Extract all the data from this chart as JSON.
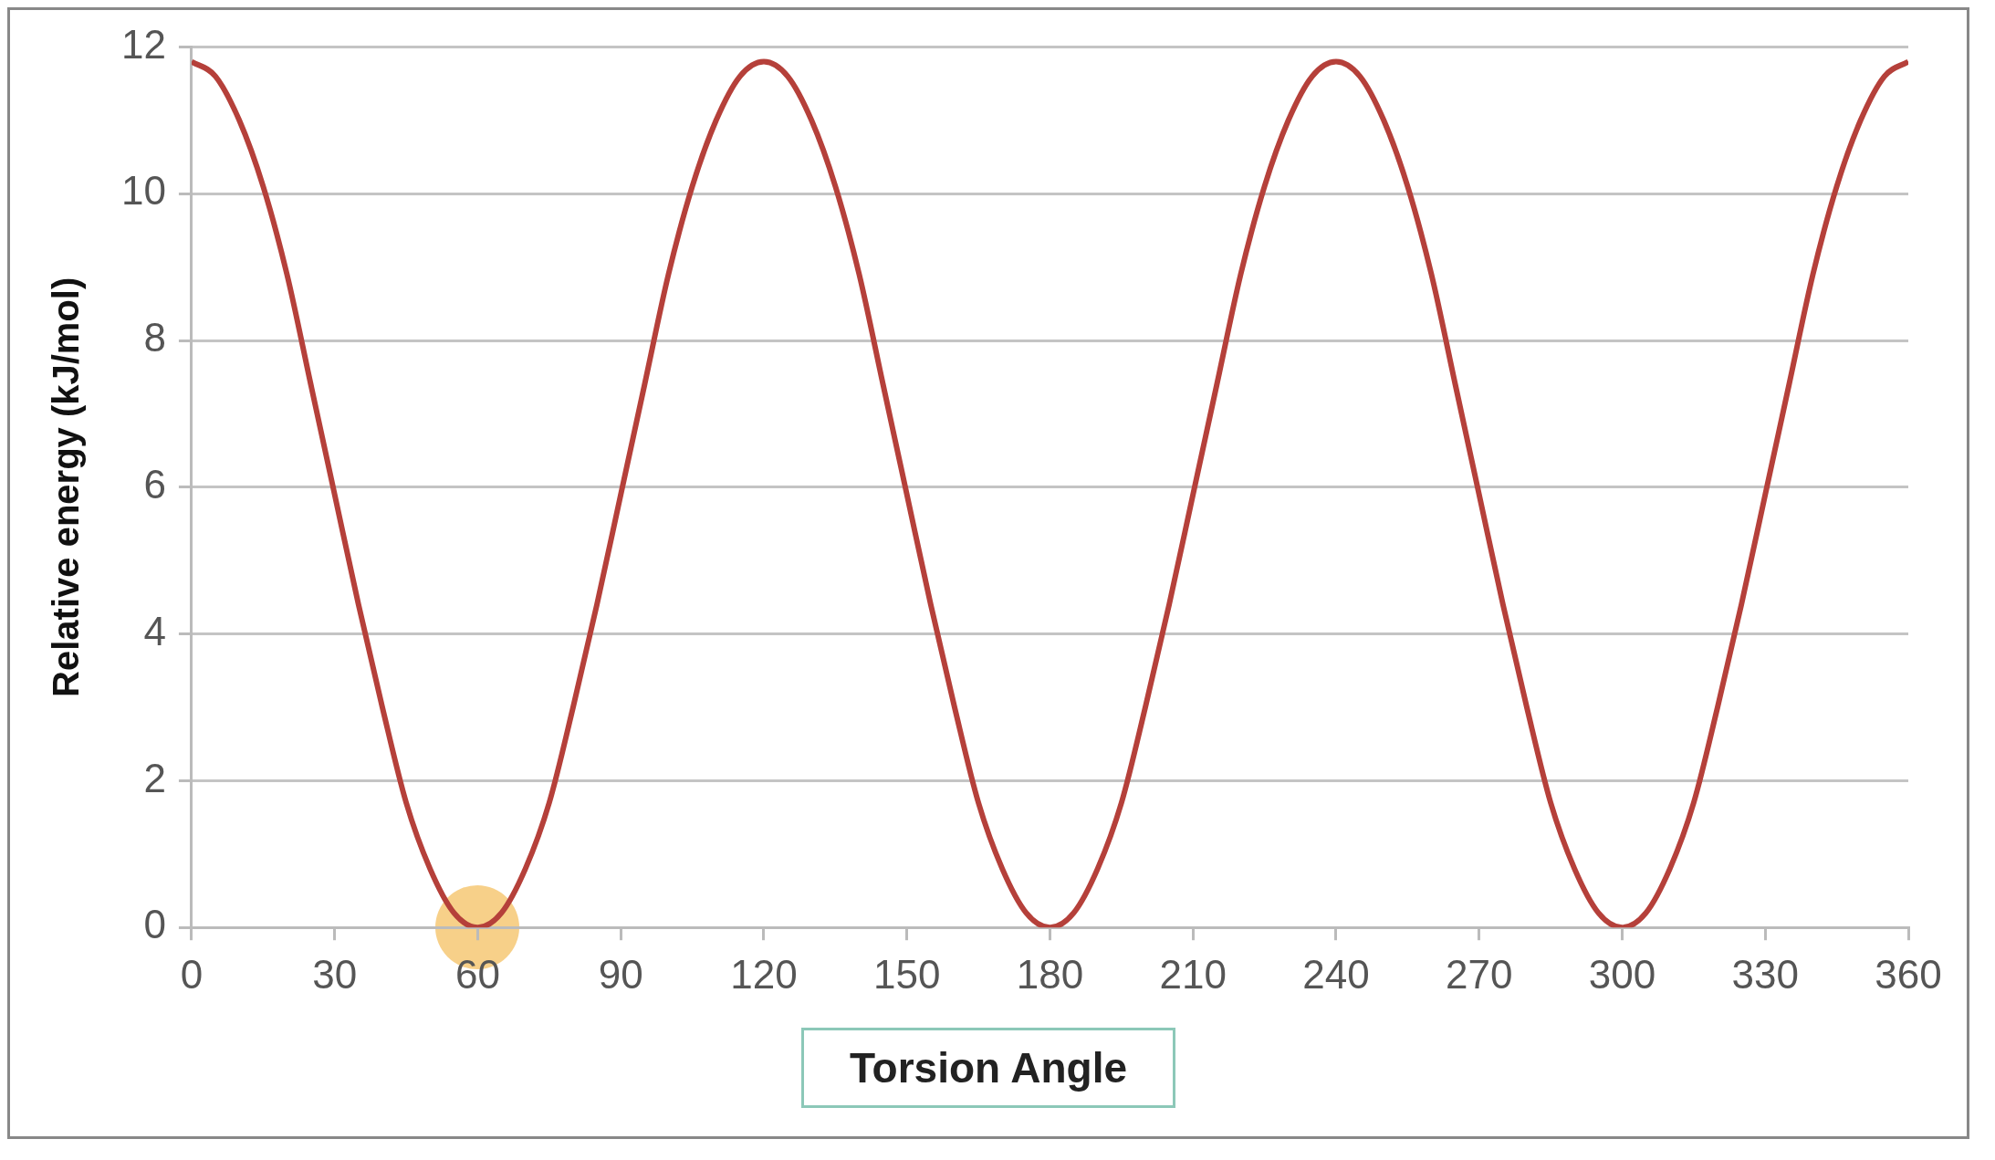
{
  "chart_data": {
    "type": "line",
    "xlabel": "Torsion Angle",
    "ylabel": "Relative energy (kJ/mol)",
    "x": [
      0,
      5,
      10,
      15,
      20,
      25,
      30,
      35,
      40,
      45,
      50,
      55,
      60,
      65,
      70,
      75,
      80,
      85,
      90,
      95,
      100,
      105,
      110,
      115,
      120,
      125,
      130,
      135,
      140,
      145,
      150,
      155,
      160,
      165,
      170,
      175,
      180,
      185,
      190,
      195,
      200,
      205,
      210,
      215,
      220,
      225,
      230,
      235,
      240,
      245,
      250,
      255,
      260,
      265,
      270,
      275,
      280,
      285,
      290,
      295,
      300,
      305,
      310,
      315,
      320,
      325,
      330,
      335,
      340,
      345,
      350,
      355,
      360
    ],
    "series": [
      {
        "color": "#b5403a",
        "values": [
          11.8,
          11.6,
          11.0,
          10.1,
          8.9,
          7.4,
          5.9,
          4.4,
          3.0,
          1.7,
          0.8,
          0.2,
          0,
          0.2,
          0.8,
          1.7,
          3.0,
          4.4,
          5.9,
          7.4,
          8.9,
          10.1,
          11.0,
          11.6,
          11.8,
          11.6,
          11.0,
          10.1,
          8.9,
          7.4,
          5.9,
          4.4,
          3.0,
          1.7,
          0.8,
          0.2,
          0,
          0.2,
          0.8,
          1.7,
          3.0,
          4.4,
          5.9,
          7.4,
          8.9,
          10.1,
          11.0,
          11.6,
          11.8,
          11.6,
          11.0,
          10.1,
          8.9,
          7.4,
          5.9,
          4.4,
          3.0,
          1.7,
          0.8,
          0.2,
          0,
          0.2,
          0.8,
          1.7,
          3.0,
          4.4,
          5.9,
          7.4,
          8.9,
          10.1,
          11.0,
          11.6,
          11.8
        ]
      }
    ],
    "xlim": [
      0,
      360
    ],
    "xticks": [
      0,
      30,
      60,
      90,
      120,
      150,
      180,
      210,
      240,
      270,
      300,
      330,
      360
    ],
    "ylim": [
      0,
      12
    ],
    "yticks": [
      0,
      2,
      4,
      6,
      8,
      10,
      12
    ],
    "grid": "y",
    "marker": "none",
    "line_style": "solid"
  }
}
